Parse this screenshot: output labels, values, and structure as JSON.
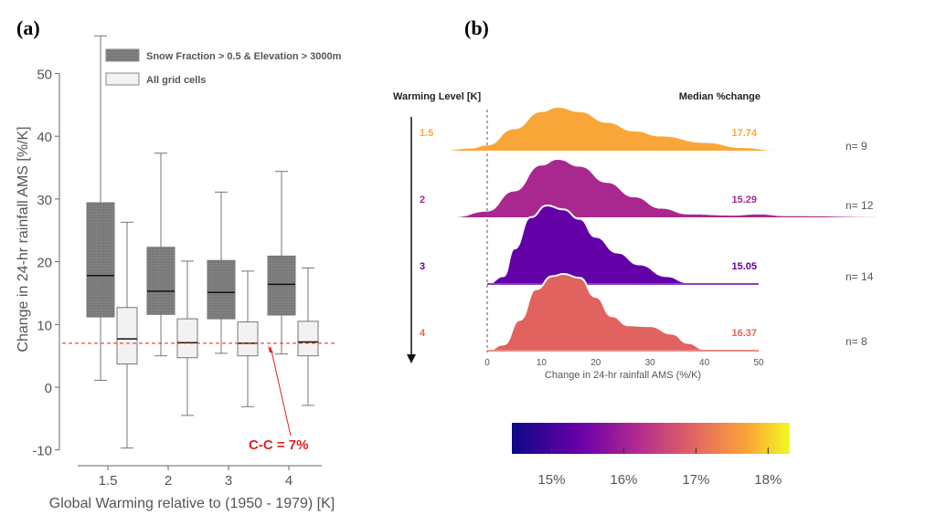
{
  "chart_data": [
    {
      "panel": "(a)",
      "type": "box",
      "xlabel": "Global Warming relative to (1950 - 1979) [K]",
      "ylabel": "Change in 24-hr rainfall AMS [%/K]",
      "categories": [
        "1.5",
        "2",
        "3",
        "4"
      ],
      "yticks": [
        -10,
        0,
        10,
        20,
        30,
        40,
        50
      ],
      "ylim": [
        -12,
        57
      ],
      "series": [
        {
          "name": "Snow Fraction > 0.5 & Elevation > 3000m",
          "color": "#7f7f7f",
          "boxes": [
            {
              "min": 1.1,
              "q1": 11.2,
              "median": 17.8,
              "q3": 29.4,
              "max": 56
            },
            {
              "min": 5,
              "q1": 11.6,
              "median": 15.3,
              "q3": 22.3,
              "max": 37.3
            },
            {
              "min": 5.4,
              "q1": 10.9,
              "median": 15.1,
              "q3": 20.2,
              "max": 31.1
            },
            {
              "min": 5.3,
              "q1": 11.5,
              "median": 16.4,
              "q3": 20.9,
              "max": 34.4
            }
          ]
        },
        {
          "name": "All grid cells",
          "color": "#f2f2f2",
          "boxes": [
            {
              "min": -9.7,
              "q1": 3.7,
              "median": 7.7,
              "q3": 12.7,
              "max": 26.3
            },
            {
              "min": -4.5,
              "q1": 4.7,
              "median": 7.1,
              "q3": 10.9,
              "max": 20.1
            },
            {
              "min": -3.1,
              "q1": 5.0,
              "median": 7.0,
              "q3": 10.4,
              "max": 18.5
            },
            {
              "min": -2.9,
              "q1": 5.0,
              "median": 7.2,
              "q3": 10.5,
              "max": 19.0
            }
          ]
        }
      ],
      "reference_line": {
        "value": 7,
        "color": "#e02020",
        "label": "C-C = 7%"
      },
      "legend": "top-right"
    },
    {
      "panel": "(b)",
      "type": "ridgeline",
      "xlabel": "Change in 24-hr rainfall AMS (%/K)",
      "xticks": [
        0,
        10,
        20,
        30,
        40,
        50
      ],
      "xlim": [
        0,
        50
      ],
      "row_header": "Warming Level [K]",
      "value_header": "Median %change",
      "ridges": [
        {
          "level": "1.5",
          "median": "17.74",
          "n": "n= 9",
          "color": "#f9a638",
          "density": [
            [
              -8,
              0
            ],
            [
              -3,
              0.05
            ],
            [
              0,
              0.12
            ],
            [
              5,
              0.5
            ],
            [
              10,
              0.9
            ],
            [
              13,
              1
            ],
            [
              17,
              0.9
            ],
            [
              22,
              0.65
            ],
            [
              27,
              0.45
            ],
            [
              32,
              0.33
            ],
            [
              40,
              0.18
            ],
            [
              47,
              0.06
            ],
            [
              53,
              0
            ]
          ]
        },
        {
          "level": "2",
          "median": "15.29",
          "n": "n= 12",
          "color": "#a8288f",
          "density": [
            [
              -6,
              0
            ],
            [
              0,
              0.1
            ],
            [
              5,
              0.45
            ],
            [
              10,
              0.9
            ],
            [
              13,
              1
            ],
            [
              17,
              0.88
            ],
            [
              22,
              0.6
            ],
            [
              27,
              0.35
            ],
            [
              32,
              0.15
            ],
            [
              37,
              0.05
            ],
            [
              45,
              0.03
            ],
            [
              50,
              0.05
            ],
            [
              55,
              0.02
            ],
            [
              75,
              0
            ]
          ]
        },
        {
          "level": "3",
          "median": "15.05",
          "n": "n= 14",
          "color": "#6300a7",
          "density": [
            [
              0,
              0
            ],
            [
              3,
              0.1
            ],
            [
              5,
              0.45
            ],
            [
              8,
              0.85
            ],
            [
              11,
              1
            ],
            [
              14,
              0.95
            ],
            [
              17,
              0.83
            ],
            [
              20,
              0.6
            ],
            [
              24,
              0.4
            ],
            [
              28,
              0.25
            ],
            [
              33,
              0.1
            ],
            [
              37,
              0.02
            ],
            [
              50,
              0
            ]
          ]
        },
        {
          "level": "4",
          "median": "16.37",
          "n": "n= 8",
          "color": "#e0635f",
          "density": [
            [
              0,
              0
            ],
            [
              3,
              0.08
            ],
            [
              6,
              0.4
            ],
            [
              9,
              0.8
            ],
            [
              12,
              0.97
            ],
            [
              14,
              1
            ],
            [
              17,
              0.95
            ],
            [
              20,
              0.7
            ],
            [
              23,
              0.45
            ],
            [
              26,
              0.33
            ],
            [
              30,
              0.32
            ],
            [
              34,
              0.22
            ],
            [
              37,
              0.1
            ],
            [
              40,
              0.02
            ],
            [
              50,
              0
            ]
          ]
        }
      ],
      "colorbar": {
        "ticks": [
          "15%",
          "16%",
          "17%",
          "18%"
        ],
        "tick_values": [
          15,
          16,
          17,
          18
        ],
        "range": [
          14.45,
          18.3
        ],
        "colormap": "plasma"
      }
    }
  ]
}
